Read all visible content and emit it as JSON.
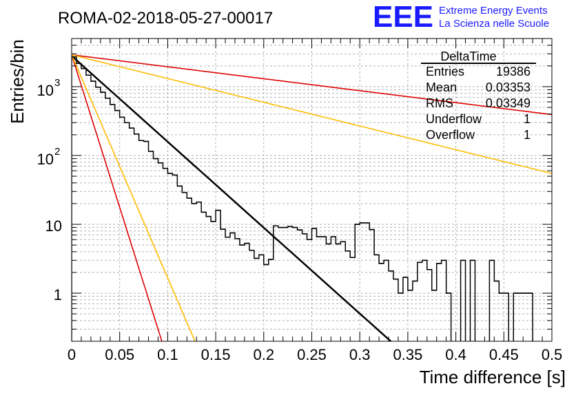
{
  "chart_data": {
    "type": "histogram",
    "title": "ROMA-02-2018-05-27-00017",
    "logo": {
      "mark": "EEE",
      "line1": "Extreme Energy Events",
      "line2": "La Scienza nelle Scuole"
    },
    "xlabel": "Time difference [s]",
    "ylabel": "Entries/bin",
    "xlim": [
      0,
      0.5
    ],
    "ylim": [
      0.2,
      5000
    ],
    "yscale": "log",
    "grid": true,
    "x_ticks": [
      {
        "value": 0,
        "label": "0"
      },
      {
        "value": 0.05,
        "label": "0.05"
      },
      {
        "value": 0.1,
        "label": "0.1"
      },
      {
        "value": 0.15,
        "label": "0.15"
      },
      {
        "value": 0.2,
        "label": "0.2"
      },
      {
        "value": 0.25,
        "label": "0.25"
      },
      {
        "value": 0.3,
        "label": "0.3"
      },
      {
        "value": 0.35,
        "label": "0.35"
      },
      {
        "value": 0.4,
        "label": "0.4"
      },
      {
        "value": 0.45,
        "label": "0.45"
      },
      {
        "value": 0.5,
        "label": "0.5"
      }
    ],
    "y_ticks": [
      {
        "value": 1,
        "label": "1",
        "exp": ""
      },
      {
        "value": 10,
        "label": "10",
        "exp": ""
      },
      {
        "value": 100,
        "label": "10",
        "exp": "2"
      },
      {
        "value": 1000,
        "label": "10",
        "exp": "3"
      }
    ],
    "stats_box": {
      "title": "DeltaTime",
      "rows": [
        {
          "label": "Entries",
          "value": "19386"
        },
        {
          "label": "Mean",
          "value": "0.03353"
        },
        {
          "label": "RMS",
          "value": "0.03349"
        },
        {
          "label": "Underflow",
          "value": "1"
        },
        {
          "label": "Overflow",
          "value": "1"
        }
      ]
    },
    "histogram": {
      "name": "DeltaTime",
      "color": "#000000",
      "bin_width": 0.005,
      "bin_start": 0,
      "counts": [
        2700,
        2170,
        1830,
        1470,
        1200,
        980,
        830,
        680,
        550,
        450,
        360,
        300,
        250,
        205,
        165,
        160,
        115,
        90,
        78,
        65,
        55,
        52,
        36,
        29,
        24,
        20,
        21,
        15,
        13,
        11,
        16,
        8.5,
        6.5,
        7.5,
        6.2,
        5.0,
        5.3,
        4.2,
        3.2,
        3.6,
        2.6,
        3.1,
        9.5,
        9.0,
        9.0,
        9.3,
        9.0,
        8.3,
        7.3,
        6.0,
        8.7,
        6.6,
        6.6,
        5.2,
        6.6,
        5.2,
        5.6,
        4.1,
        3.3,
        10.0,
        10.5,
        10.5,
        8.4,
        3.6,
        2.7,
        3.0,
        2.1,
        1.6,
        1.0,
        1.7,
        1.1,
        1.5,
        2.8,
        3.0,
        2.2,
        1.1,
        2.7,
        3.0,
        1.0,
        0.1,
        0.1,
        3.0,
        0.1,
        3.0,
        0.1,
        0.1,
        0.1,
        3.0,
        1.5,
        1.0,
        1.0,
        0.1,
        1.0,
        1.0,
        1.0,
        1.0,
        0.1,
        0.1,
        0.1,
        0.1
      ]
    },
    "fits": [
      {
        "name": "fit",
        "color": "#000000",
        "width": 2.5,
        "A": 2800,
        "tau": 0.0348
      },
      {
        "name": "red-steep",
        "color": "#dd0000",
        "width": 1.6,
        "A": 2900,
        "tau": 0.0098
      },
      {
        "name": "red-shallow",
        "color": "#dd0000",
        "width": 1.6,
        "A": 2900,
        "tau": 0.25
      },
      {
        "name": "orange-steep",
        "color": "#ffbb00",
        "width": 1.6,
        "A": 2900,
        "tau": 0.0134
      },
      {
        "name": "orange-shallow",
        "color": "#ffbb00",
        "width": 1.6,
        "A": 2900,
        "tau": 0.126
      }
    ]
  }
}
